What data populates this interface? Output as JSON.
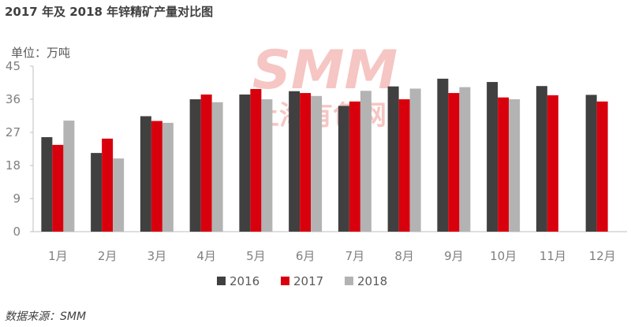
{
  "title": "2017 年及 2018 年锌精矿产量对比图",
  "unit": "单位：万吨",
  "source": "数据来源：SMM",
  "watermark": {
    "logo": "SMM",
    "text": "上海有色网"
  },
  "colors": {
    "2016": "#404040",
    "2017": "#d9000d",
    "2018": "#b3b3b3"
  },
  "chart_data": {
    "type": "bar",
    "categories": [
      "1月",
      "2月",
      "3月",
      "4月",
      "5月",
      "6月",
      "7月",
      "8月",
      "9月",
      "10月",
      "11月",
      "12月"
    ],
    "series": [
      {
        "name": "2016",
        "values": [
          25.7,
          21.4,
          31.4,
          36.0,
          37.3,
          38.2,
          34.2,
          39.5,
          41.6,
          40.7,
          39.6,
          37.2
        ]
      },
      {
        "name": "2017",
        "values": [
          23.6,
          25.3,
          30.1,
          37.3,
          38.8,
          37.7,
          35.4,
          36.0,
          37.7,
          36.5,
          37.1,
          35.4
        ]
      },
      {
        "name": "2018",
        "values": [
          30.2,
          19.9,
          29.6,
          35.2,
          36.0,
          36.9,
          38.3,
          38.9,
          39.3,
          36.0,
          null,
          null
        ]
      }
    ],
    "yticks": [
      0,
      9,
      18,
      27,
      36,
      45
    ],
    "ylim": [
      0,
      45
    ],
    "legend_position": "bottom"
  }
}
